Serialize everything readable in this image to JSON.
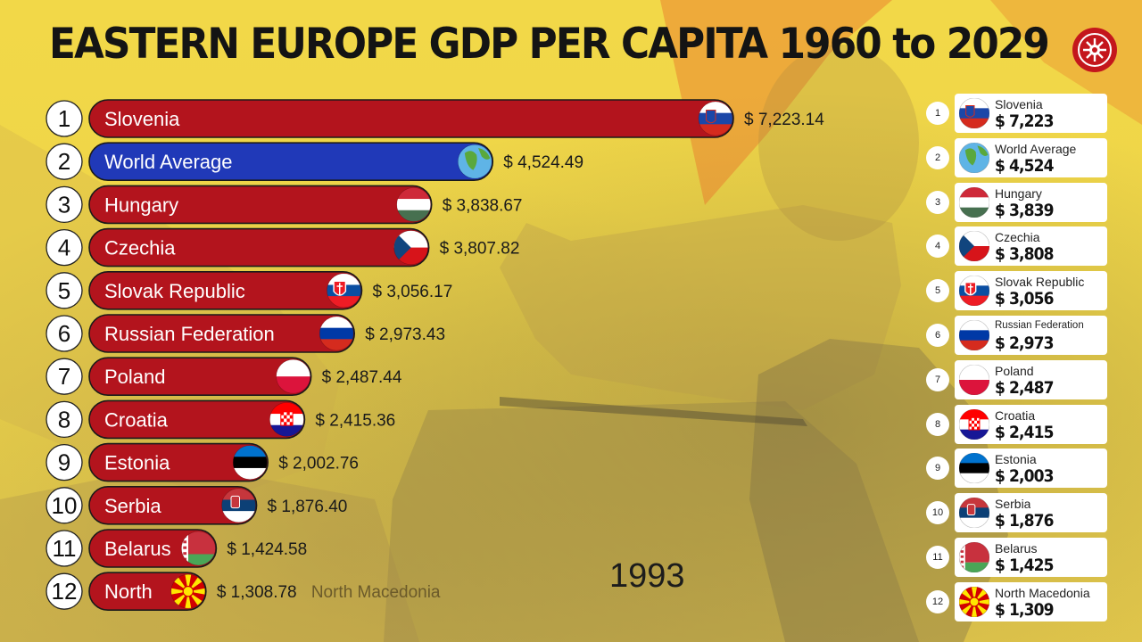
{
  "header": {
    "title": "EASTERN EUROPE GDP PER CAPITA 1960 to 2029"
  },
  "logo": {
    "icon": "sun-emblem-icon",
    "color": "#c4161c"
  },
  "colors": {
    "country_bar": "#b3141d",
    "world_bar": "#2039b8",
    "rank_circle": "#ffffff"
  },
  "chart_data": {
    "type": "bar",
    "orientation": "horizontal",
    "title": "EASTERN EUROPE GDP PER CAPITA 1960 to 2029",
    "year": "1993",
    "value_prefix": "$ ",
    "grid": false,
    "ranks": [
      1,
      2,
      3,
      4,
      5,
      6,
      7,
      8,
      9,
      10,
      11,
      12
    ],
    "categories": [
      "Slovenia",
      "World Average",
      "Hungary",
      "Czechia",
      "Slovak Republic",
      "Russian Federation",
      "Poland",
      "Croatia",
      "Estonia",
      "Serbia",
      "Belarus",
      "North Macedonia"
    ],
    "bar_labels": [
      "Slovenia",
      "World Average",
      "Hungary",
      "Czechia",
      "Slovak Republic",
      "Russian Federation",
      "Poland",
      "Croatia",
      "Estonia",
      "Serbia",
      "Belarus",
      "North"
    ],
    "values": [
      7223.14,
      4524.49,
      3838.67,
      3807.82,
      3056.17,
      2973.43,
      2487.44,
      2415.36,
      2002.76,
      1876.4,
      1424.58,
      1308.78
    ],
    "value_labels": [
      "$ 7,223.14",
      "$ 4,524.49",
      "$ 3,838.67",
      "$ 3,807.82",
      "$ 3,056.17",
      "$ 2,973.43",
      "$ 2,487.44",
      "$ 2,415.36",
      "$ 2,002.76",
      "$ 1,876.40",
      "$ 1,424.58",
      "$ 1,308.78"
    ],
    "trailing_name": "North Macedonia",
    "flags": [
      "slovenia-flag-icon",
      "globe-icon",
      "hungary-flag-icon",
      "czechia-flag-icon",
      "slovakia-flag-icon",
      "russia-flag-icon",
      "poland-flag-icon",
      "croatia-flag-icon",
      "estonia-flag-icon",
      "serbia-flag-icon",
      "belarus-flag-icon",
      "north-macedonia-flag-icon"
    ],
    "bar_colors": [
      "#b3141d",
      "#2039b8",
      "#b3141d",
      "#b3141d",
      "#b3141d",
      "#b3141d",
      "#b3141d",
      "#b3141d",
      "#b3141d",
      "#b3141d",
      "#b3141d",
      "#b3141d"
    ]
  },
  "leaderboard": [
    {
      "rank": "1",
      "name": "Slovenia",
      "value": "$ 7,223",
      "flag": "slovenia-flag-icon"
    },
    {
      "rank": "2",
      "name": "World Average",
      "value": "$ 4,524",
      "flag": "globe-icon"
    },
    {
      "rank": "3",
      "name": "Hungary",
      "value": "$ 3,839",
      "flag": "hungary-flag-icon"
    },
    {
      "rank": "4",
      "name": "Czechia",
      "value": "$ 3,808",
      "flag": "czechia-flag-icon"
    },
    {
      "rank": "5",
      "name": "Slovak Republic",
      "value": "$ 3,056",
      "flag": "slovakia-flag-icon"
    },
    {
      "rank": "6",
      "name": "Russian Federation",
      "value": "$ 2,973",
      "flag": "russia-flag-icon"
    },
    {
      "rank": "7",
      "name": "Poland",
      "value": "$ 2,487",
      "flag": "poland-flag-icon"
    },
    {
      "rank": "8",
      "name": "Croatia",
      "value": "$ 2,415",
      "flag": "croatia-flag-icon"
    },
    {
      "rank": "9",
      "name": "Estonia",
      "value": "$ 2,003",
      "flag": "estonia-flag-icon"
    },
    {
      "rank": "10",
      "name": "Serbia",
      "value": "$ 1,876",
      "flag": "serbia-flag-icon"
    },
    {
      "rank": "11",
      "name": "Belarus",
      "value": "$ 1,425",
      "flag": "belarus-flag-icon"
    },
    {
      "rank": "12",
      "name": "North Macedonia",
      "value": "$ 1,309",
      "flag": "north-macedonia-flag-icon"
    }
  ]
}
